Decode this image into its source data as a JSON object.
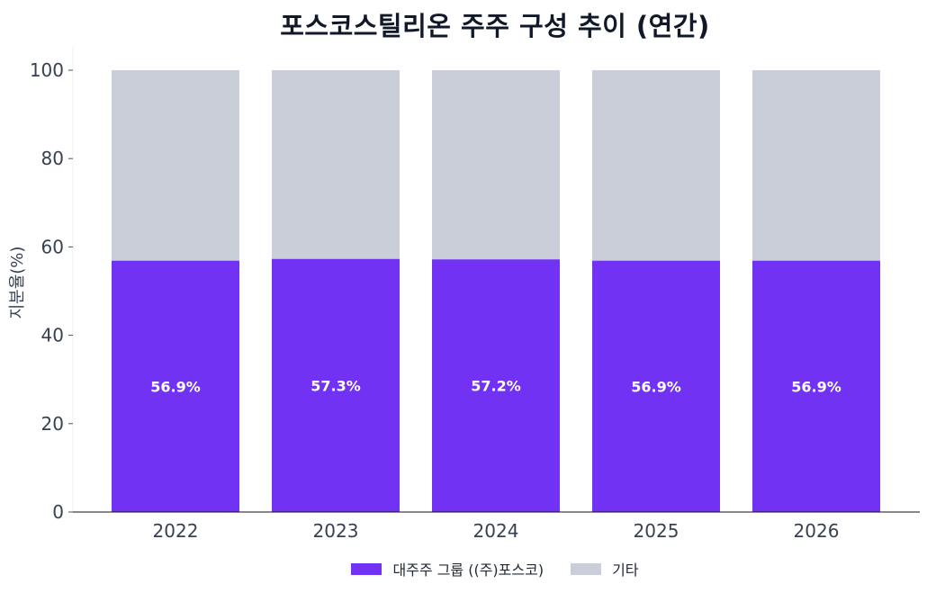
{
  "chart_data": {
    "type": "bar",
    "stacked": true,
    "title": "포스코스틸리온 주주 구성 추이 (연간)",
    "ylabel": "지분율(%)",
    "xlabel": "",
    "categories": [
      "2022",
      "2023",
      "2024",
      "2025",
      "2026"
    ],
    "ylim": [
      0,
      100
    ],
    "yticks": [
      "0",
      "20",
      "40",
      "60",
      "80",
      "100"
    ],
    "series": [
      {
        "name": "대주주 그룹 ((주)포스코)",
        "color": "#7132f3",
        "values": [
          56.9,
          57.3,
          57.2,
          56.9,
          56.9
        ],
        "labels": [
          "56.9%",
          "57.3%",
          "57.2%",
          "56.9%",
          "56.9%"
        ]
      },
      {
        "name": "기타",
        "color": "#c9ced8",
        "values": [
          43.1,
          42.7,
          42.8,
          43.1,
          43.1
        ]
      }
    ],
    "legend": "bottom-center",
    "grid": false
  }
}
